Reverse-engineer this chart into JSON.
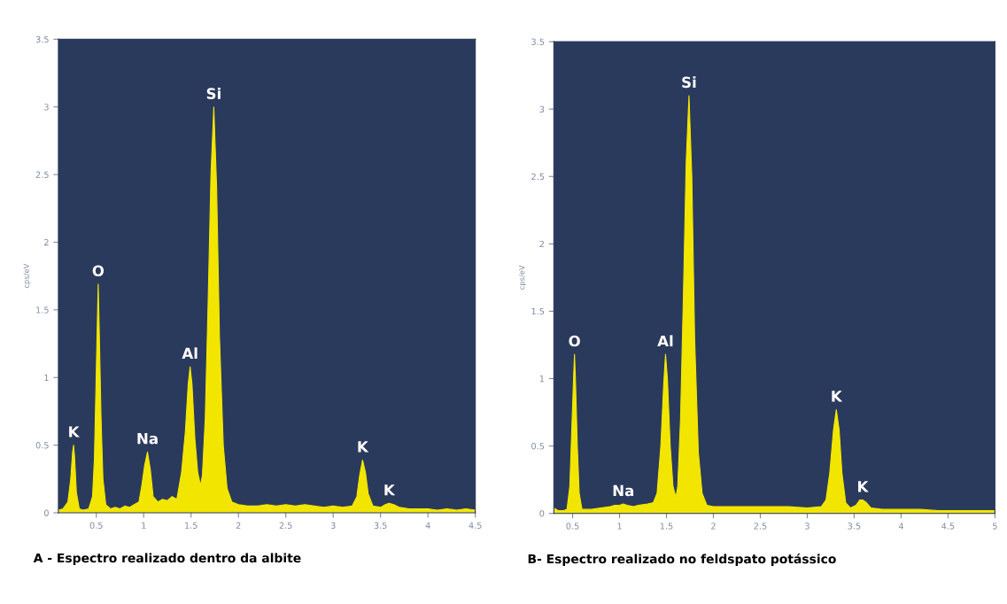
{
  "chart_data": [
    {
      "type": "area",
      "ylabel": "cps/eV",
      "xlim": [
        0.1,
        4.5
      ],
      "ylim": [
        0,
        3.5
      ],
      "xticks": [
        0.5,
        1,
        1.5,
        2,
        2.5,
        3,
        3.5,
        4,
        4.5
      ],
      "yticks": [
        0,
        0.5,
        1,
        1.5,
        2,
        2.5,
        3,
        3.5
      ],
      "grid": false,
      "series": [
        {
          "color": "#f2e600",
          "x": [
            0.1,
            0.15,
            0.2,
            0.23,
            0.25,
            0.26,
            0.27,
            0.29,
            0.32,
            0.36,
            0.42,
            0.46,
            0.48,
            0.5,
            0.51,
            0.52,
            0.53,
            0.55,
            0.57,
            0.6,
            0.65,
            0.7,
            0.75,
            0.8,
            0.85,
            0.9,
            0.95,
            0.98,
            1.01,
            1.04,
            1.07,
            1.1,
            1.15,
            1.2,
            1.25,
            1.3,
            1.35,
            1.4,
            1.44,
            1.47,
            1.49,
            1.51,
            1.54,
            1.57,
            1.6,
            1.62,
            1.65,
            1.68,
            1.71,
            1.74,
            1.77,
            1.8,
            1.84,
            1.88,
            1.93,
            2.0,
            2.1,
            2.2,
            2.3,
            2.4,
            2.5,
            2.6,
            2.7,
            2.8,
            2.9,
            3.0,
            3.1,
            3.2,
            3.25,
            3.28,
            3.31,
            3.34,
            3.37,
            3.42,
            3.5,
            3.55,
            3.59,
            3.64,
            3.7,
            3.8,
            3.9,
            4.0,
            4.1,
            4.2,
            4.3,
            4.4,
            4.5
          ],
          "values": [
            0.02,
            0.03,
            0.08,
            0.25,
            0.45,
            0.5,
            0.42,
            0.15,
            0.03,
            0.02,
            0.03,
            0.12,
            0.4,
            1.05,
            1.38,
            1.69,
            1.38,
            0.7,
            0.25,
            0.06,
            0.03,
            0.04,
            0.03,
            0.05,
            0.04,
            0.06,
            0.08,
            0.2,
            0.35,
            0.45,
            0.32,
            0.12,
            0.08,
            0.1,
            0.09,
            0.12,
            0.1,
            0.3,
            0.6,
            0.95,
            1.08,
            0.95,
            0.55,
            0.3,
            0.2,
            0.28,
            0.7,
            1.55,
            2.5,
            3.0,
            2.4,
            1.3,
            0.5,
            0.18,
            0.08,
            0.06,
            0.05,
            0.05,
            0.06,
            0.05,
            0.06,
            0.05,
            0.06,
            0.05,
            0.04,
            0.05,
            0.04,
            0.05,
            0.12,
            0.28,
            0.39,
            0.3,
            0.14,
            0.05,
            0.04,
            0.06,
            0.07,
            0.06,
            0.04,
            0.03,
            0.03,
            0.03,
            0.02,
            0.03,
            0.02,
            0.03,
            0.02
          ]
        }
      ],
      "annotations": [
        {
          "text": "K",
          "x": 0.26,
          "y": 0.5
        },
        {
          "text": "O",
          "x": 0.52,
          "y": 1.69
        },
        {
          "text": "Na",
          "x": 1.04,
          "y": 0.45
        },
        {
          "text": "Al",
          "x": 1.49,
          "y": 1.08
        },
        {
          "text": "Si",
          "x": 1.74,
          "y": 3.0
        },
        {
          "text": "K",
          "x": 3.31,
          "y": 0.39
        },
        {
          "text": "K",
          "x": 3.59,
          "y": 0.07
        },
        "A - Espectro realizado dentro da albite"
      ]
    },
    {
      "type": "area",
      "ylabel": "cps/eV",
      "xlim": [
        0.3,
        5
      ],
      "ylim": [
        0,
        3.5
      ],
      "xticks": [
        0.5,
        1,
        1.5,
        2,
        2.5,
        3,
        3.5,
        4,
        4.5,
        5
      ],
      "yticks": [
        0,
        0.5,
        1,
        1.5,
        2,
        2.5,
        3,
        3.5
      ],
      "grid": false,
      "series": [
        {
          "color": "#f2e600",
          "x": [
            0.3,
            0.35,
            0.4,
            0.44,
            0.47,
            0.49,
            0.51,
            0.52,
            0.53,
            0.55,
            0.57,
            0.6,
            0.7,
            0.8,
            0.9,
            0.95,
            1.0,
            1.04,
            1.08,
            1.15,
            1.2,
            1.3,
            1.36,
            1.4,
            1.44,
            1.47,
            1.49,
            1.51,
            1.54,
            1.57,
            1.6,
            1.62,
            1.65,
            1.68,
            1.71,
            1.74,
            1.77,
            1.8,
            1.84,
            1.88,
            1.93,
            2.0,
            2.2,
            2.4,
            2.6,
            2.8,
            3.0,
            3.15,
            3.2,
            3.24,
            3.28,
            3.31,
            3.34,
            3.37,
            3.41,
            3.46,
            3.52,
            3.56,
            3.59,
            3.63,
            3.68,
            3.8,
            4.0,
            4.2,
            4.4,
            4.6,
            4.8,
            5.0
          ],
          "values": [
            0.04,
            0.02,
            0.02,
            0.03,
            0.2,
            0.6,
            1.0,
            1.18,
            1.0,
            0.5,
            0.15,
            0.03,
            0.03,
            0.04,
            0.05,
            0.06,
            0.06,
            0.07,
            0.06,
            0.05,
            0.06,
            0.07,
            0.08,
            0.15,
            0.5,
            0.95,
            1.18,
            1.0,
            0.5,
            0.2,
            0.12,
            0.2,
            0.7,
            1.6,
            2.6,
            3.1,
            2.5,
            1.3,
            0.45,
            0.15,
            0.06,
            0.05,
            0.05,
            0.05,
            0.05,
            0.05,
            0.04,
            0.05,
            0.1,
            0.3,
            0.62,
            0.77,
            0.62,
            0.3,
            0.08,
            0.04,
            0.06,
            0.1,
            0.1,
            0.08,
            0.04,
            0.03,
            0.03,
            0.03,
            0.02,
            0.02,
            0.02,
            0.02
          ]
        }
      ],
      "annotations": [
        {
          "text": "O",
          "x": 0.52,
          "y": 1.18
        },
        {
          "text": "Na",
          "x": 1.04,
          "y": 0.07
        },
        {
          "text": "Al",
          "x": 1.49,
          "y": 1.18
        },
        {
          "text": "Si",
          "x": 1.74,
          "y": 3.1
        },
        {
          "text": "K",
          "x": 3.31,
          "y": 0.77
        },
        {
          "text": "K",
          "x": 3.59,
          "y": 0.1
        },
        "B- Espectro realizado no feldspato potássico"
      ]
    }
  ]
}
